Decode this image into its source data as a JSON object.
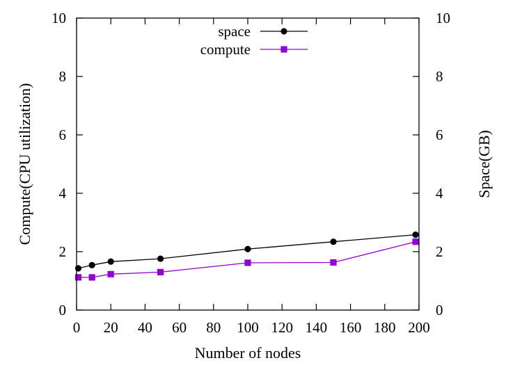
{
  "chart_data": {
    "type": "line",
    "xlabel": "Number of nodes",
    "ylabel": "Compute(CPU utilization)",
    "y2label": "Space(GB)",
    "xlim": [
      0,
      200
    ],
    "ylim": [
      0,
      10
    ],
    "y2lim": [
      0,
      10
    ],
    "xticks": [
      0,
      20,
      40,
      60,
      80,
      100,
      120,
      140,
      160,
      180,
      200
    ],
    "yticks": [
      0,
      2,
      4,
      6,
      8,
      10
    ],
    "y2ticks": [
      0,
      2,
      4,
      6,
      8,
      10
    ],
    "grid": false,
    "legend_position": "top-center",
    "series": [
      {
        "name": "space",
        "marker": "circle",
        "color": "#000000",
        "x": [
          1,
          9,
          20,
          49,
          100,
          150,
          198
        ],
        "y": [
          1.43,
          1.54,
          1.66,
          1.76,
          2.09,
          2.34,
          2.58
        ]
      },
      {
        "name": "compute",
        "marker": "square",
        "color": "#9400d3",
        "x": [
          1,
          9,
          20,
          49,
          100,
          150,
          198
        ],
        "y": [
          1.12,
          1.12,
          1.23,
          1.3,
          1.62,
          1.63,
          2.34
        ]
      }
    ]
  }
}
